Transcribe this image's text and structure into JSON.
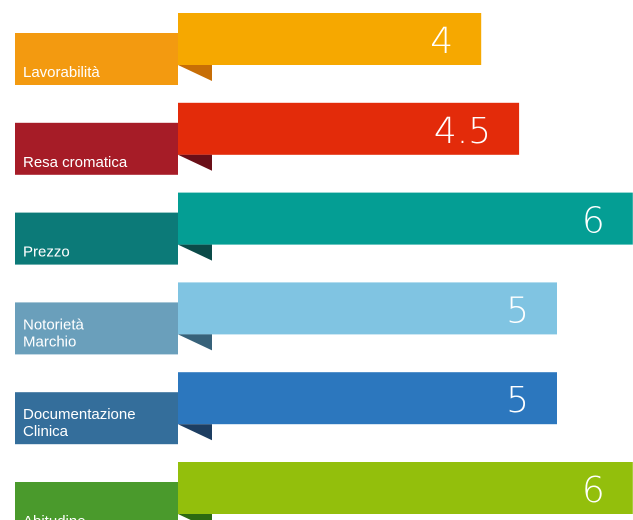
{
  "chart_data": {
    "type": "bar",
    "orientation": "horizontal",
    "categories": [
      "Lavorabilità",
      "Resa cromatica",
      "Prezzo",
      "Notorietà Marchio",
      "Documentazione Clinica",
      "Abitudine"
    ],
    "values": [
      4,
      4.5,
      6,
      5,
      5,
      6
    ],
    "value_labels": [
      "4",
      "4.5",
      "6",
      "5",
      "5",
      "6"
    ],
    "xlim": [
      0,
      6
    ],
    "colors": [
      {
        "bar": "#f6a800",
        "tag": "#f39a10",
        "fold": "#c76e06"
      },
      {
        "bar": "#e32b0a",
        "tag": "#a61c27",
        "fold": "#6a0f18"
      },
      {
        "bar": "#049e94",
        "tag": "#0c7a78",
        "fold": "#0b4b49"
      },
      {
        "bar": "#80c4e2",
        "tag": "#6a9fbb",
        "fold": "#37627a"
      },
      {
        "bar": "#2c77be",
        "tag": "#346e9b",
        "fold": "#1d3e62"
      },
      {
        "bar": "#93bf0c",
        "tag": "#4a9a2c",
        "fold": "#2c6a12"
      }
    ],
    "grid": false,
    "legend": "none"
  }
}
